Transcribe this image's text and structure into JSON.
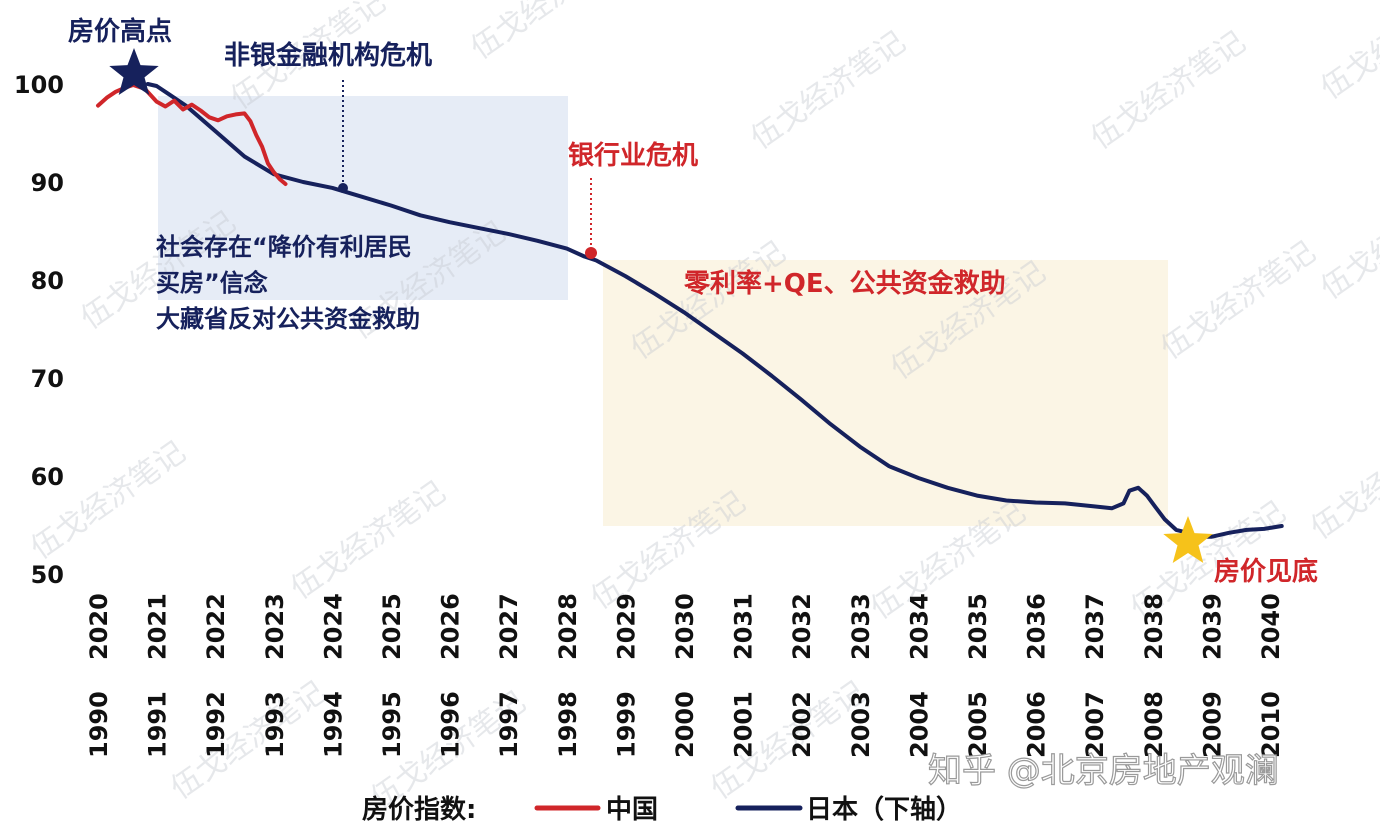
{
  "chart_data": {
    "type": "line",
    "title": "",
    "y_axis": {
      "ticks": [
        50,
        60,
        70,
        80,
        90,
        100
      ],
      "range": [
        50,
        102
      ]
    },
    "x_axis_top": {
      "labels": [
        "2020",
        "2021",
        "2022",
        "2023",
        "2024",
        "2025",
        "2026",
        "2027",
        "2028",
        "2029",
        "2030",
        "2031",
        "2032",
        "2033",
        "2034",
        "2035",
        "2036",
        "2037",
        "2038",
        "2039",
        "2040"
      ]
    },
    "x_axis_bottom": {
      "labels": [
        "1990",
        "1991",
        "1992",
        "1993",
        "1994",
        "1995",
        "1996",
        "1997",
        "1998",
        "1999",
        "2000",
        "2001",
        "2002",
        "2003",
        "2004",
        "2005",
        "2006",
        "2007",
        "2008",
        "2009",
        "2010"
      ]
    },
    "series": [
      {
        "name": "中国",
        "color": "#d0262a",
        "x": [
          2020.0,
          2020.15,
          2020.3,
          2020.45,
          2020.6,
          2020.8,
          2021.0,
          2021.15,
          2021.3,
          2021.45,
          2021.6,
          2021.75,
          2021.9,
          2022.05,
          2022.2,
          2022.35,
          2022.5,
          2022.6,
          2022.7,
          2022.8,
          2022.9,
          2023.0,
          2023.1,
          2023.2
        ],
        "y": [
          97.8,
          98.6,
          99.2,
          99.6,
          99.9,
          99.5,
          98.2,
          97.7,
          98.3,
          97.4,
          97.9,
          97.3,
          96.6,
          96.3,
          96.7,
          96.9,
          97.0,
          96.2,
          94.8,
          93.6,
          91.9,
          91.0,
          90.3,
          89.8
        ]
      },
      {
        "name": "日本（下轴）",
        "color": "#16215c",
        "x": [
          2020.85,
          2021.0,
          2021.2,
          2021.5,
          2022.0,
          2022.5,
          2023.0,
          2023.5,
          2024.0,
          2024.5,
          2025.0,
          2025.5,
          2026.0,
          2026.5,
          2027.0,
          2027.5,
          2028.0,
          2028.3,
          2028.5,
          2029.0,
          2029.5,
          2030.0,
          2030.5,
          2031.0,
          2031.5,
          2032.0,
          2032.5,
          2033.0,
          2033.5,
          2034.0,
          2034.5,
          2035.0,
          2035.5,
          2036.0,
          2036.5,
          2037.0,
          2037.3,
          2037.5,
          2037.6,
          2037.75,
          2037.9,
          2038.05,
          2038.2,
          2038.4,
          2038.6,
          2038.75,
          2039.0,
          2039.3,
          2039.6,
          2039.9,
          2040.2
        ],
        "y": [
          100.0,
          99.8,
          99.0,
          97.8,
          95.2,
          92.6,
          90.8,
          90.0,
          89.4,
          88.5,
          87.6,
          86.6,
          85.9,
          85.3,
          84.7,
          84.0,
          83.2,
          82.4,
          82.0,
          80.4,
          78.6,
          76.7,
          74.6,
          72.5,
          70.2,
          67.8,
          65.3,
          63.0,
          61.0,
          59.8,
          58.8,
          58.0,
          57.5,
          57.3,
          57.2,
          56.9,
          56.7,
          57.2,
          58.5,
          58.8,
          58.0,
          56.8,
          55.6,
          54.5,
          54.2,
          53.8,
          53.8,
          54.2,
          54.5,
          54.6,
          54.9
        ]
      }
    ],
    "annotations": {
      "peak": "房价高点",
      "nonbank": "非银金融机构危机",
      "bank": "银行业危机",
      "belief_line1": "社会存在“降价有利居民",
      "belief_line2": "买房”信念",
      "belief_line3": "大藏省反对公共资金救助",
      "zero_rate": "零利率+QE、公共资金救助",
      "bottom": "房价见底"
    },
    "legend": {
      "title": "房价指数:",
      "items": [
        "中国",
        "日本（下轴）"
      ]
    },
    "watermark_text": "伍戈经济笔记",
    "source_watermark": "知乎 @北京房地产观澜",
    "colors": {
      "blue_box": "#dde5f3",
      "yellow_box": "#fbf4e2",
      "red": "#d0262a",
      "navy": "#16215c",
      "star_peak": "#16215c",
      "star_bottom": "#f6c21a"
    }
  }
}
